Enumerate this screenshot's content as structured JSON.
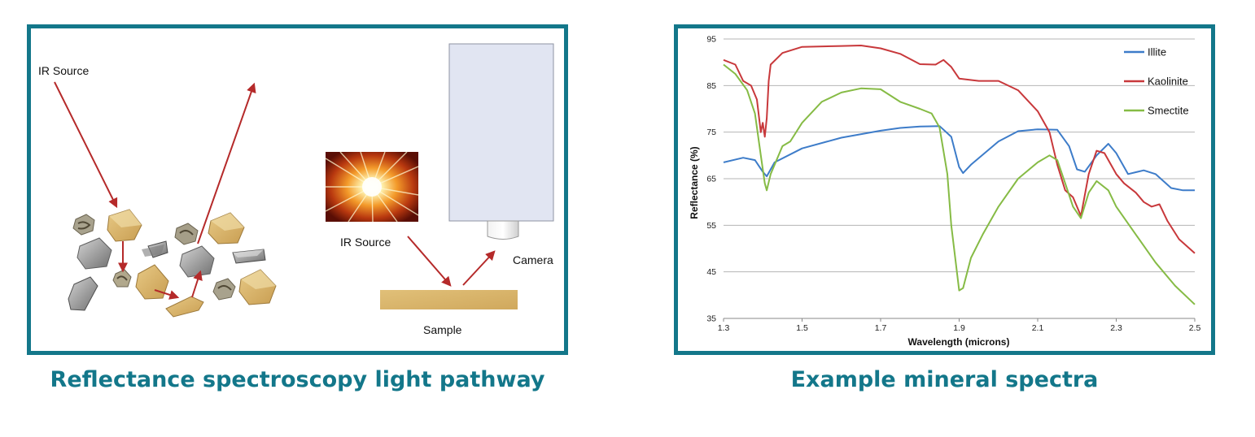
{
  "left_diagram": {
    "caption": "Reflectance spectroscopy light pathway",
    "ir_source_label_1": "IR Source",
    "ir_source_label_2": "IR Source",
    "camera_label": "Camera",
    "sample_label": "Sample",
    "colors": {
      "arrow": "#b52a2a",
      "sample": "#d9b56a",
      "camera": "#e1e5f2"
    }
  },
  "right_chart": {
    "caption": "Example mineral spectra"
  },
  "chart_data": {
    "type": "line",
    "xlabel": "Wavelength (microns)",
    "ylabel": "Reflectance (%)",
    "xlim": [
      1.3,
      2.5
    ],
    "ylim": [
      35,
      95
    ],
    "xticks": [
      "1.3",
      "1.5",
      "1.7",
      "1.9",
      "2.1",
      "2.3",
      "2.5"
    ],
    "yticks": [
      "35",
      "45",
      "55",
      "65",
      "75",
      "85",
      "95"
    ],
    "grid": "horizontal",
    "legend_position": "top-right",
    "series": [
      {
        "name": "Illite",
        "color": "#3d7cc9",
        "points": [
          [
            1.3,
            68.5
          ],
          [
            1.35,
            69.5
          ],
          [
            1.38,
            69
          ],
          [
            1.4,
            66.5
          ],
          [
            1.41,
            65.5
          ],
          [
            1.43,
            68.5
          ],
          [
            1.5,
            71.5
          ],
          [
            1.6,
            73.8
          ],
          [
            1.7,
            75.3
          ],
          [
            1.75,
            75.9
          ],
          [
            1.8,
            76.2
          ],
          [
            1.85,
            76.3
          ],
          [
            1.88,
            74
          ],
          [
            1.9,
            67.5
          ],
          [
            1.91,
            66.2
          ],
          [
            1.93,
            68
          ],
          [
            2.0,
            73
          ],
          [
            2.05,
            75.2
          ],
          [
            2.1,
            75.6
          ],
          [
            2.15,
            75.5
          ],
          [
            2.18,
            72
          ],
          [
            2.2,
            67
          ],
          [
            2.22,
            66.5
          ],
          [
            2.25,
            70
          ],
          [
            2.28,
            72.5
          ],
          [
            2.3,
            70.5
          ],
          [
            2.33,
            66
          ],
          [
            2.37,
            66.8
          ],
          [
            2.4,
            66
          ],
          [
            2.44,
            63
          ],
          [
            2.47,
            62.5
          ],
          [
            2.5,
            62.5
          ]
        ]
      },
      {
        "name": "Kaolinite",
        "color": "#c8383b",
        "points": [
          [
            1.3,
            90.5
          ],
          [
            1.33,
            89.5
          ],
          [
            1.35,
            86
          ],
          [
            1.37,
            85
          ],
          [
            1.385,
            82
          ],
          [
            1.395,
            75
          ],
          [
            1.4,
            77
          ],
          [
            1.405,
            74
          ],
          [
            1.41,
            78
          ],
          [
            1.415,
            86
          ],
          [
            1.42,
            89.5
          ],
          [
            1.45,
            92
          ],
          [
            1.5,
            93.3
          ],
          [
            1.6,
            93.5
          ],
          [
            1.65,
            93.6
          ],
          [
            1.7,
            93
          ],
          [
            1.75,
            91.8
          ],
          [
            1.8,
            89.6
          ],
          [
            1.84,
            89.5
          ],
          [
            1.86,
            90.5
          ],
          [
            1.88,
            89
          ],
          [
            1.9,
            86.5
          ],
          [
            1.95,
            86
          ],
          [
            2.0,
            86
          ],
          [
            2.05,
            84
          ],
          [
            2.1,
            79.5
          ],
          [
            2.13,
            75
          ],
          [
            2.15,
            68
          ],
          [
            2.17,
            62.5
          ],
          [
            2.19,
            61
          ],
          [
            2.21,
            57
          ],
          [
            2.23,
            66
          ],
          [
            2.25,
            71
          ],
          [
            2.27,
            70.5
          ],
          [
            2.3,
            66
          ],
          [
            2.32,
            64
          ],
          [
            2.35,
            62
          ],
          [
            2.37,
            60
          ],
          [
            2.39,
            59
          ],
          [
            2.41,
            59.5
          ],
          [
            2.43,
            56
          ],
          [
            2.46,
            52
          ],
          [
            2.5,
            49
          ]
        ]
      },
      {
        "name": "Smectite",
        "color": "#86bb45",
        "points": [
          [
            1.3,
            89.5
          ],
          [
            1.33,
            87.5
          ],
          [
            1.36,
            84
          ],
          [
            1.38,
            79
          ],
          [
            1.395,
            70
          ],
          [
            1.405,
            64
          ],
          [
            1.41,
            62.5
          ],
          [
            1.42,
            66
          ],
          [
            1.45,
            72
          ],
          [
            1.47,
            73
          ],
          [
            1.5,
            77
          ],
          [
            1.55,
            81.5
          ],
          [
            1.6,
            83.5
          ],
          [
            1.65,
            84.4
          ],
          [
            1.7,
            84.2
          ],
          [
            1.75,
            81.5
          ],
          [
            1.8,
            80
          ],
          [
            1.83,
            79
          ],
          [
            1.85,
            76
          ],
          [
            1.87,
            66
          ],
          [
            1.88,
            55
          ],
          [
            1.9,
            41
          ],
          [
            1.91,
            41.5
          ],
          [
            1.93,
            48
          ],
          [
            1.96,
            53
          ],
          [
            2.0,
            59
          ],
          [
            2.05,
            65
          ],
          [
            2.1,
            68.5
          ],
          [
            2.13,
            70
          ],
          [
            2.15,
            69
          ],
          [
            2.17,
            64
          ],
          [
            2.19,
            59
          ],
          [
            2.21,
            56.5
          ],
          [
            2.23,
            62
          ],
          [
            2.25,
            64.5
          ],
          [
            2.28,
            62.5
          ],
          [
            2.3,
            59
          ],
          [
            2.35,
            53
          ],
          [
            2.4,
            47
          ],
          [
            2.45,
            42
          ],
          [
            2.5,
            38
          ]
        ]
      }
    ]
  }
}
